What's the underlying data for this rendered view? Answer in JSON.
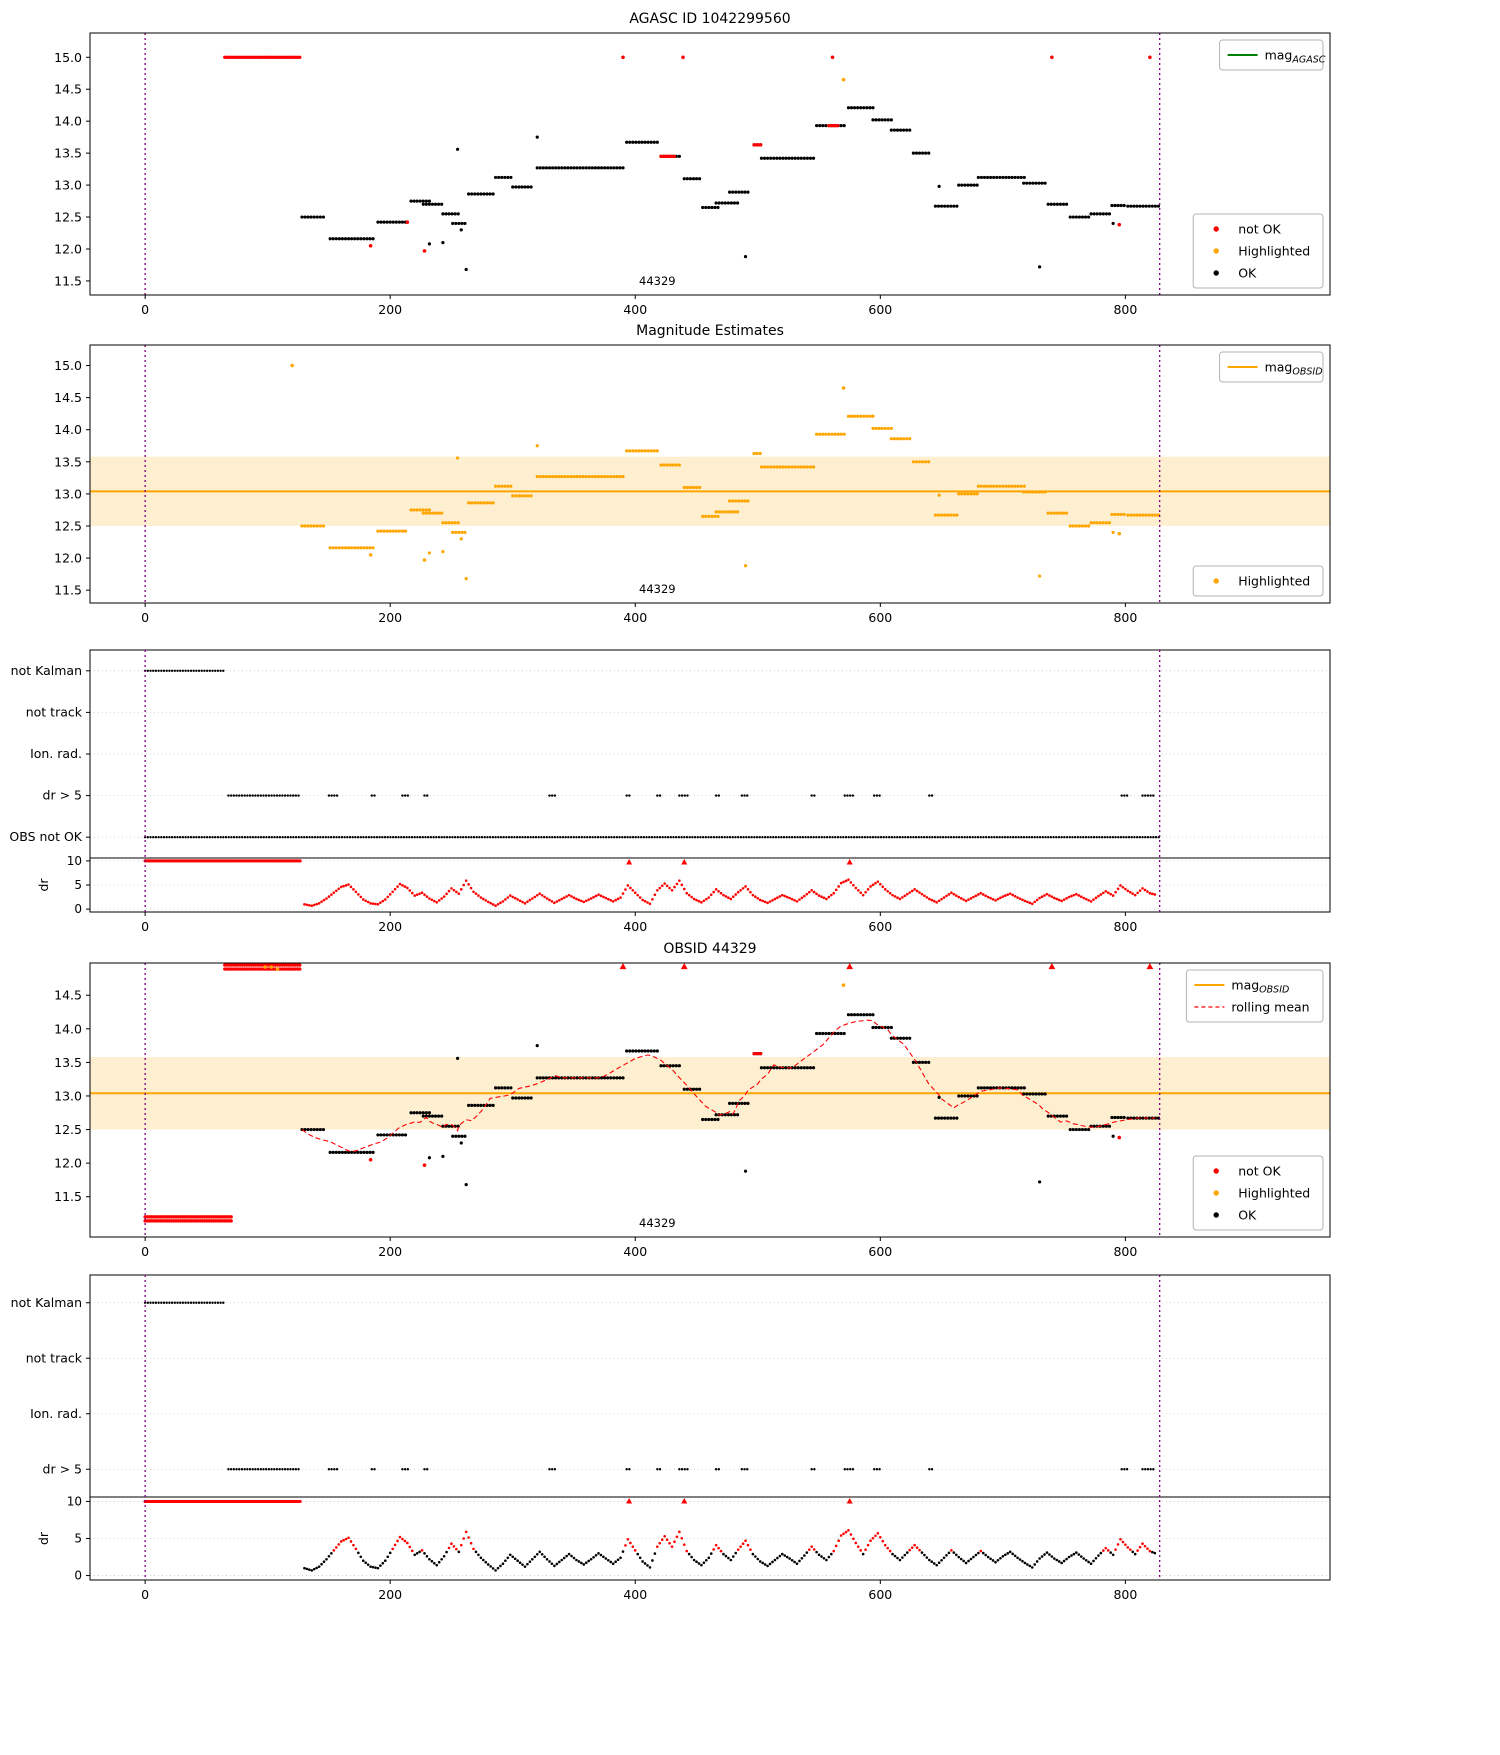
{
  "figure": {
    "colors": {
      "ok": "#000000",
      "not_ok": "#ff0000",
      "highlighted": "#ffa500",
      "agasc_line": "#008000",
      "vline": "#800080",
      "band_fill": "rgba(255,165,0,0.18)"
    }
  },
  "chart_data": {
    "type": "scatter",
    "xlim": [
      -45,
      967
    ],
    "xticks": [
      0,
      200,
      400,
      600,
      800
    ],
    "vlines": [
      0,
      828
    ],
    "dr_ylabel": "dr",
    "dr_yticks": [
      0,
      5,
      10
    ],
    "dr_clip_run": [
      0,
      127
    ],
    "dr_clip_markers": [
      395,
      440,
      575
    ],
    "magnitude_segments": [
      [
        128,
        147,
        12.5
      ],
      [
        151,
        186,
        12.16
      ],
      [
        190,
        214,
        12.42
      ],
      [
        217,
        233,
        12.75
      ],
      [
        227,
        243,
        12.7
      ],
      [
        243,
        257,
        12.55
      ],
      [
        251,
        261,
        12.4
      ],
      [
        264,
        284,
        12.86
      ],
      [
        286,
        299,
        13.12
      ],
      [
        300,
        317,
        12.97
      ],
      [
        320,
        390,
        13.27
      ],
      [
        393,
        419,
        13.67
      ],
      [
        421,
        437,
        13.45
      ],
      [
        440,
        453,
        13.1
      ],
      [
        455,
        468,
        12.65
      ],
      [
        466,
        484,
        12.72
      ],
      [
        477,
        494,
        12.89
      ],
      [
        497,
        503,
        13.63
      ],
      [
        503,
        546,
        13.42
      ],
      [
        548,
        571,
        13.93
      ],
      [
        574,
        594,
        14.21
      ],
      [
        594,
        609,
        14.02
      ],
      [
        609,
        626,
        13.86
      ],
      [
        627,
        641,
        13.5
      ],
      [
        645,
        663,
        12.67
      ],
      [
        664,
        679,
        13.0
      ],
      [
        680,
        719,
        13.12
      ],
      [
        717,
        735,
        13.03
      ],
      [
        737,
        753,
        12.7
      ],
      [
        755,
        772,
        12.5
      ],
      [
        772,
        788,
        12.55
      ],
      [
        789,
        801,
        12.68
      ],
      [
        802,
        828,
        12.67
      ]
    ],
    "extra_points": [
      [
        255,
        13.56
      ],
      [
        243,
        12.1
      ],
      [
        262,
        11.68
      ],
      [
        320,
        13.75
      ],
      [
        490,
        11.88
      ],
      [
        648,
        12.98
      ],
      [
        730,
        11.72
      ],
      [
        790,
        12.4
      ],
      [
        232,
        12.08
      ],
      [
        258,
        12.3
      ]
    ],
    "runs": {
      "none": [],
      "not_kalman": [
        [
          0,
          65
        ]
      ],
      "dr_gt5": [
        [
          68,
          127
        ],
        [
          150,
          158
        ],
        [
          185,
          189
        ],
        [
          210,
          216
        ],
        [
          228,
          232
        ],
        [
          330,
          335
        ],
        [
          393,
          397
        ],
        [
          418,
          422
        ],
        [
          436,
          444
        ],
        [
          466,
          470
        ],
        [
          487,
          492
        ],
        [
          544,
          548
        ],
        [
          571,
          579
        ],
        [
          595,
          600
        ],
        [
          640,
          643
        ],
        [
          797,
          802
        ],
        [
          814,
          823
        ]
      ],
      "obs_not_ok": [
        [
          0,
          828
        ]
      ]
    },
    "dr_points": [
      [
        130,
        1.0
      ],
      [
        136,
        0.7
      ],
      [
        142,
        1.2
      ],
      [
        148,
        2.2
      ],
      [
        154,
        3.4
      ],
      [
        160,
        4.6
      ],
      [
        166,
        5.1
      ],
      [
        172,
        3.6
      ],
      [
        178,
        2.0
      ],
      [
        184,
        1.2
      ],
      [
        190,
        1.0
      ],
      [
        196,
        2.0
      ],
      [
        202,
        3.6
      ],
      [
        208,
        5.2
      ],
      [
        214,
        4.4
      ],
      [
        220,
        2.8
      ],
      [
        226,
        3.4
      ],
      [
        232,
        2.2
      ],
      [
        238,
        1.4
      ],
      [
        244,
        2.6
      ],
      [
        250,
        4.3
      ],
      [
        256,
        3.2
      ],
      [
        262,
        5.9
      ],
      [
        268,
        3.6
      ],
      [
        274,
        2.4
      ],
      [
        280,
        1.5
      ],
      [
        286,
        0.7
      ],
      [
        292,
        1.6
      ],
      [
        298,
        2.8
      ],
      [
        304,
        2.0
      ],
      [
        310,
        1.2
      ],
      [
        316,
        2.2
      ],
      [
        322,
        3.2
      ],
      [
        328,
        2.2
      ],
      [
        334,
        1.3
      ],
      [
        340,
        2.1
      ],
      [
        346,
        2.9
      ],
      [
        352,
        2.1
      ],
      [
        358,
        1.5
      ],
      [
        364,
        2.2
      ],
      [
        370,
        3.0
      ],
      [
        376,
        2.3
      ],
      [
        382,
        1.6
      ],
      [
        388,
        2.4
      ],
      [
        394,
        4.9
      ],
      [
        400,
        3.4
      ],
      [
        406,
        1.9
      ],
      [
        412,
        1.1
      ],
      [
        418,
        3.9
      ],
      [
        424,
        5.3
      ],
      [
        430,
        3.9
      ],
      [
        436,
        5.9
      ],
      [
        442,
        3.3
      ],
      [
        448,
        2.1
      ],
      [
        454,
        1.4
      ],
      [
        460,
        2.4
      ],
      [
        466,
        4.1
      ],
      [
        472,
        2.9
      ],
      [
        478,
        2.1
      ],
      [
        484,
        3.5
      ],
      [
        490,
        4.7
      ],
      [
        496,
        2.9
      ],
      [
        502,
        1.9
      ],
      [
        508,
        1.3
      ],
      [
        514,
        2.1
      ],
      [
        520,
        2.9
      ],
      [
        526,
        2.3
      ],
      [
        532,
        1.6
      ],
      [
        538,
        2.7
      ],
      [
        544,
        3.9
      ],
      [
        550,
        2.8
      ],
      [
        556,
        2.1
      ],
      [
        562,
        3.3
      ],
      [
        568,
        5.4
      ],
      [
        574,
        6.1
      ],
      [
        580,
        4.4
      ],
      [
        586,
        2.9
      ],
      [
        592,
        4.7
      ],
      [
        598,
        5.7
      ],
      [
        604,
        4.1
      ],
      [
        610,
        2.9
      ],
      [
        616,
        2.1
      ],
      [
        622,
        3.1
      ],
      [
        628,
        4.1
      ],
      [
        634,
        3.1
      ],
      [
        640,
        2.1
      ],
      [
        646,
        1.4
      ],
      [
        652,
        2.4
      ],
      [
        658,
        3.4
      ],
      [
        664,
        2.5
      ],
      [
        670,
        1.7
      ],
      [
        676,
        2.5
      ],
      [
        682,
        3.3
      ],
      [
        688,
        2.5
      ],
      [
        694,
        1.8
      ],
      [
        700,
        2.6
      ],
      [
        706,
        3.2
      ],
      [
        712,
        2.4
      ],
      [
        718,
        1.7
      ],
      [
        724,
        1.1
      ],
      [
        730,
        2.3
      ],
      [
        736,
        3.1
      ],
      [
        742,
        2.3
      ],
      [
        748,
        1.7
      ],
      [
        754,
        2.5
      ],
      [
        760,
        3.1
      ],
      [
        766,
        2.3
      ],
      [
        772,
        1.6
      ],
      [
        778,
        2.7
      ],
      [
        784,
        3.7
      ],
      [
        790,
        2.8
      ],
      [
        796,
        4.9
      ],
      [
        802,
        3.8
      ],
      [
        808,
        2.9
      ],
      [
        814,
        4.3
      ],
      [
        820,
        3.3
      ],
      [
        826,
        2.9
      ]
    ],
    "panels": [
      {
        "id": "agasc",
        "kind": "mag",
        "title": "AGASC ID 1042299560",
        "ylim": [
          11.28,
          15.38
        ],
        "yticks": [
          11.5,
          12.0,
          12.5,
          13.0,
          13.5,
          14.0,
          14.5,
          15.0
        ],
        "annotation": "44329",
        "legend_top": [
          {
            "label": "mag",
            "sub": "AGASC",
            "marker": "line",
            "color": "#008000"
          }
        ],
        "legend_bottom": [
          {
            "label": "not OK",
            "marker": "dot",
            "color": "#ff0000"
          },
          {
            "label": "Highlighted",
            "marker": "dot",
            "color": "#ffa500"
          },
          {
            "label": "OK",
            "marker": "dot",
            "color": "#000000"
          }
        ],
        "series": [
          {
            "name": "OK",
            "color": "#000000",
            "use_segments": true,
            "use_extras": true
          },
          {
            "name": "not OK",
            "color": "#ff0000",
            "runs": [
              [
                65,
                127,
                15.0
              ],
              [
                421,
                433,
                13.45
              ],
              [
                497,
                503,
                13.63
              ],
              [
                558,
                566,
                13.93
              ]
            ],
            "points": [
              [
                390,
                15.0
              ],
              [
                439,
                15.0
              ],
              [
                561,
                15.0
              ],
              [
                740,
                15.0
              ],
              [
                820,
                15.0
              ],
              [
                184,
                12.05
              ],
              [
                214,
                12.42
              ],
              [
                228,
                11.97
              ],
              [
                795,
                12.38
              ]
            ]
          },
          {
            "name": "Highlighted",
            "color": "#ffa500",
            "points": [
              [
                570,
                14.65
              ]
            ]
          }
        ]
      },
      {
        "id": "estimates",
        "kind": "mag",
        "title": "Magnitude Estimates",
        "ylim": [
          11.3,
          15.32
        ],
        "yticks": [
          11.5,
          12.0,
          12.5,
          13.0,
          13.5,
          14.0,
          14.5,
          15.0
        ],
        "annotation": "44329",
        "band": [
          12.5,
          13.58
        ],
        "hline": 13.04,
        "legend_top": [
          {
            "label": "mag",
            "sub": "OBSID",
            "marker": "line",
            "color": "#ffa500"
          }
        ],
        "legend_bottom": [
          {
            "label": "Highlighted",
            "marker": "dot",
            "color": "#ffa500"
          }
        ],
        "series": [
          {
            "name": "Highlighted",
            "color": "#ffa500",
            "use_segments": true,
            "use_extras": true,
            "points": [
              [
                120,
                15.0
              ],
              [
                570,
                14.65
              ],
              [
                184,
                12.05
              ],
              [
                228,
                11.97
              ],
              [
                795,
                12.38
              ]
            ]
          }
        ]
      },
      {
        "id": "flags_top",
        "kind": "flags",
        "rows": [
          "not Kalman",
          "not track",
          "Ion. rad.",
          "dr > 5",
          "OBS not OK"
        ],
        "row_runs": [
          "not_kalman",
          "none",
          "none",
          "dr_gt5",
          "obs_not_ok"
        ]
      },
      {
        "id": "obsid",
        "kind": "mag",
        "title": "OBSID 44329",
        "ylim": [
          10.9,
          14.98
        ],
        "yticks": [
          11.5,
          12.0,
          12.5,
          13.0,
          13.5,
          14.0,
          14.5
        ],
        "annotation": "44329",
        "band": [
          12.5,
          13.58
        ],
        "hline": 13.04,
        "rolling_mean": true,
        "legend_top": [
          {
            "label": "mag",
            "sub": "OBSID",
            "marker": "line",
            "color": "#ffa500"
          },
          {
            "label": "rolling mean",
            "marker": "dashed",
            "color": "#ff0000"
          }
        ],
        "legend_bottom": [
          {
            "label": "not OK",
            "marker": "dot",
            "color": "#ff0000"
          },
          {
            "label": "Highlighted",
            "marker": "dot",
            "color": "#ffa500"
          },
          {
            "label": "OK",
            "marker": "dot",
            "color": "#000000"
          }
        ],
        "series": [
          {
            "name": "OK",
            "color": "#000000",
            "use_segments": true,
            "use_extras": true
          },
          {
            "name": "not OK",
            "color": "#ff0000",
            "runs": [
              [
                65,
                127,
                14.95
              ],
              [
                65,
                127,
                14.89
              ],
              [
                0,
                71,
                11.2
              ],
              [
                0,
                71,
                11.14
              ],
              [
                497,
                503,
                13.63
              ]
            ],
            "points": [
              [
                184,
                12.05
              ],
              [
                228,
                11.97
              ],
              [
                795,
                12.38
              ]
            ],
            "triangles": [
              [
                390,
                14.93
              ],
              [
                440,
                14.93
              ],
              [
                575,
                14.93
              ],
              [
                740,
                14.93
              ],
              [
                820,
                14.93
              ]
            ]
          },
          {
            "name": "Highlighted",
            "color": "#ffa500",
            "points": [
              [
                570,
                14.65
              ],
              [
                98,
                14.92
              ],
              [
                103,
                14.92
              ],
              [
                108,
                14.89
              ]
            ]
          }
        ]
      },
      {
        "id": "flags_bottom",
        "kind": "flags",
        "rows": [
          "not Kalman",
          "not track",
          "Ion. rad.",
          "dr > 5"
        ],
        "row_runs": [
          "not_kalman",
          "none",
          "none",
          "dr_gt5"
        ],
        "dr_threshold": 3.3
      }
    ]
  }
}
